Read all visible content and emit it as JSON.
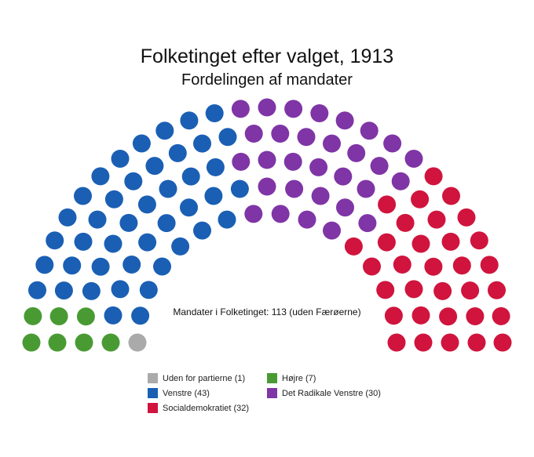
{
  "chart_data": {
    "type": "parliament",
    "title": "Folketinget efter valget, 1913",
    "subtitle": "Fordelingen af mandater",
    "total_text": "Mandater i Folketinget: 113 (uden Færøerne)",
    "total_seats": 113,
    "series": [
      {
        "name": "Uden for partierne",
        "seats": 1,
        "color": "#aaaaaa",
        "legend": "Uden for partierne (1)"
      },
      {
        "name": "Højre",
        "seats": 7,
        "color": "#4a9a34",
        "legend": "Højre (7)"
      },
      {
        "name": "Venstre",
        "seats": 43,
        "color": "#1a5fb4",
        "legend": "Venstre (43)"
      },
      {
        "name": "Det Radikale Venstre",
        "seats": 30,
        "color": "#7f35a6",
        "legend": "Det Radikale Venstre (30)"
      },
      {
        "name": "Socialdemokratiet",
        "seats": 32,
        "color": "#d0143d",
        "legend": "Socialdemokratiet (32)"
      }
    ],
    "legend_order": [
      "Uden for partierne",
      "Højre",
      "Venstre",
      "Det Radikale Venstre",
      "Socialdemokratiet"
    ]
  }
}
